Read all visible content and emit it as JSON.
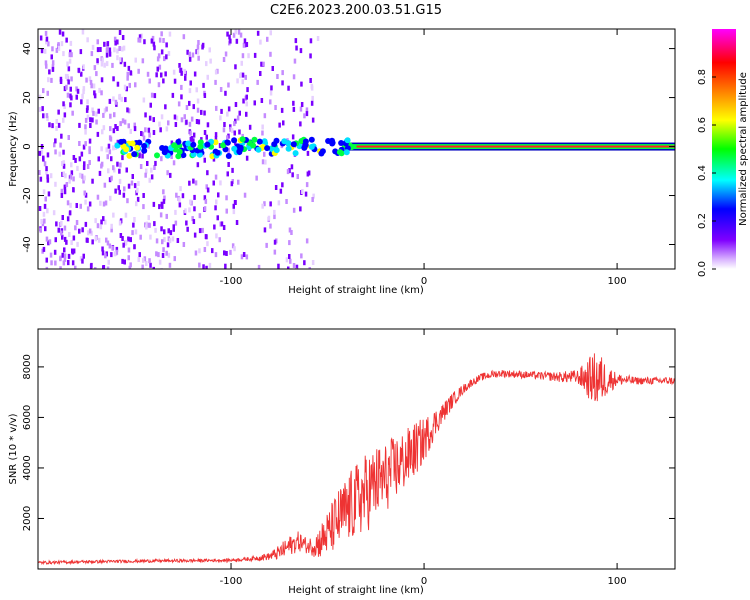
{
  "title": "C2E6.2023.200.03.51.G15",
  "chart_data": [
    {
      "type": "heatmap",
      "title": "C2E6.2023.200.03.51.G15",
      "xlabel": "Height of straight line (km)",
      "ylabel": "Frequency (Hz)",
      "xlim": [
        -200,
        130
      ],
      "ylim": [
        -50,
        48
      ],
      "xticks": [
        -100,
        0,
        100
      ],
      "xtick_labels": [
        "-100",
        "0",
        "100"
      ],
      "yticks": [
        -40,
        -20,
        0,
        20,
        40
      ],
      "ytick_labels": [
        "-40",
        "-20",
        "0",
        "20",
        "40"
      ],
      "signal_line_hz": 0,
      "description_series": [
        {
          "name": "noise",
          "x_range": [
            -200,
            -60
          ],
          "amplitude": 0.15
        },
        {
          "name": "carrier",
          "x_range": [
            -35,
            130
          ],
          "frequency_hz": 0,
          "amplitude": 0.95
        }
      ],
      "colorbar": {
        "label": "Normalized spectral amplitude",
        "range": [
          0,
          1
        ],
        "ticks": [
          0.0,
          0.2,
          0.4,
          0.6,
          0.8
        ],
        "tick_labels": [
          "0.0",
          "0.2",
          "0.4",
          "0.6",
          "0.8"
        ],
        "colors": [
          "#ffffff",
          "#d9b3ff",
          "#8000ff",
          "#0000ff",
          "#00ffff",
          "#00ff00",
          "#ffff00",
          "#ff8000",
          "#ff0000",
          "#ff00ff"
        ]
      }
    },
    {
      "type": "line",
      "xlabel": "Height of straight line (km)",
      "ylabel": "SNR (10 * v/v)",
      "xlim": [
        -200,
        130
      ],
      "ylim": [
        0,
        9500
      ],
      "xticks": [
        -100,
        0,
        100
      ],
      "xtick_labels": [
        "-100",
        "0",
        "100"
      ],
      "yticks": [
        2000,
        4000,
        6000,
        8000
      ],
      "ytick_labels": [
        "2000",
        "4000",
        "6000",
        "8000"
      ],
      "series": [
        {
          "name": "SNR",
          "color": "#ee3333",
          "x": [
            -200,
            -180,
            -160,
            -140,
            -120,
            -100,
            -90,
            -80,
            -75,
            -70,
            -65,
            -60,
            -55,
            -50,
            -45,
            -40,
            -35,
            -30,
            -25,
            -20,
            -15,
            -10,
            -5,
            0,
            5,
            10,
            15,
            20,
            25,
            30,
            35,
            40,
            50,
            60,
            70,
            80,
            85,
            90,
            95,
            100,
            110,
            120,
            130
          ],
          "y": [
            250,
            280,
            300,
            320,
            330,
            350,
            400,
            500,
            650,
            900,
            1100,
            900,
            1000,
            1400,
            1900,
            2300,
            2700,
            3000,
            3400,
            3600,
            4000,
            4300,
            4700,
            5100,
            5700,
            6200,
            6700,
            7100,
            7400,
            7600,
            7700,
            7750,
            7700,
            7650,
            7600,
            7600,
            7550,
            7500,
            7500,
            7500,
            7450,
            7450,
            7450
          ],
          "noise": [
            60,
            60,
            60,
            60,
            60,
            60,
            80,
            150,
            300,
            400,
            400,
            300,
            600,
            900,
            1200,
            1400,
            1500,
            1600,
            1500,
            1400,
            1300,
            1200,
            1100,
            900,
            600,
            400,
            300,
            200,
            150,
            150,
            150,
            150,
            150,
            150,
            200,
            300,
            800,
            1200,
            600,
            250,
            150,
            150,
            150
          ]
        }
      ]
    }
  ]
}
